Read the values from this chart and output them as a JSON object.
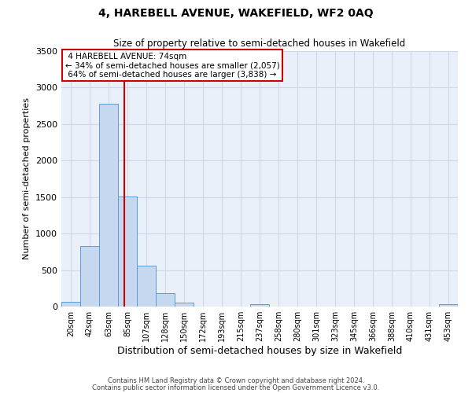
{
  "title": "4, HAREBELL AVENUE, WAKEFIELD, WF2 0AQ",
  "subtitle": "Size of property relative to semi-detached houses in Wakefield",
  "xlabel": "Distribution of semi-detached houses by size in Wakefield",
  "ylabel": "Number of semi-detached properties",
  "bar_color": "#c5d8f0",
  "bar_edge_color": "#5b9bd5",
  "categories": [
    "20sqm",
    "42sqm",
    "63sqm",
    "85sqm",
    "107sqm",
    "128sqm",
    "150sqm",
    "172sqm",
    "193sqm",
    "215sqm",
    "237sqm",
    "258sqm",
    "280sqm",
    "301sqm",
    "323sqm",
    "345sqm",
    "366sqm",
    "388sqm",
    "410sqm",
    "431sqm",
    "453sqm"
  ],
  "values": [
    60,
    830,
    2780,
    1510,
    555,
    185,
    55,
    0,
    0,
    0,
    35,
    0,
    0,
    0,
    0,
    0,
    0,
    0,
    0,
    0,
    35
  ],
  "ylim": [
    0,
    3500
  ],
  "yticks": [
    0,
    500,
    1000,
    1500,
    2000,
    2500,
    3000,
    3500
  ],
  "property_label": "4 HAREBELL AVENUE: 74sqm",
  "pct_smaller": 34,
  "count_smaller": 2057,
  "pct_larger": 64,
  "count_larger": 3838,
  "vline_x_index": 2.82,
  "annotation_box_color": "#ffffff",
  "annotation_box_edge_color": "#cc0000",
  "vline_color": "#cc0000",
  "grid_color": "#d0d8e8",
  "background_color": "#eaf0fa",
  "footer_line1": "Contains HM Land Registry data © Crown copyright and database right 2024.",
  "footer_line2": "Contains public sector information licensed under the Open Government Licence v3.0."
}
